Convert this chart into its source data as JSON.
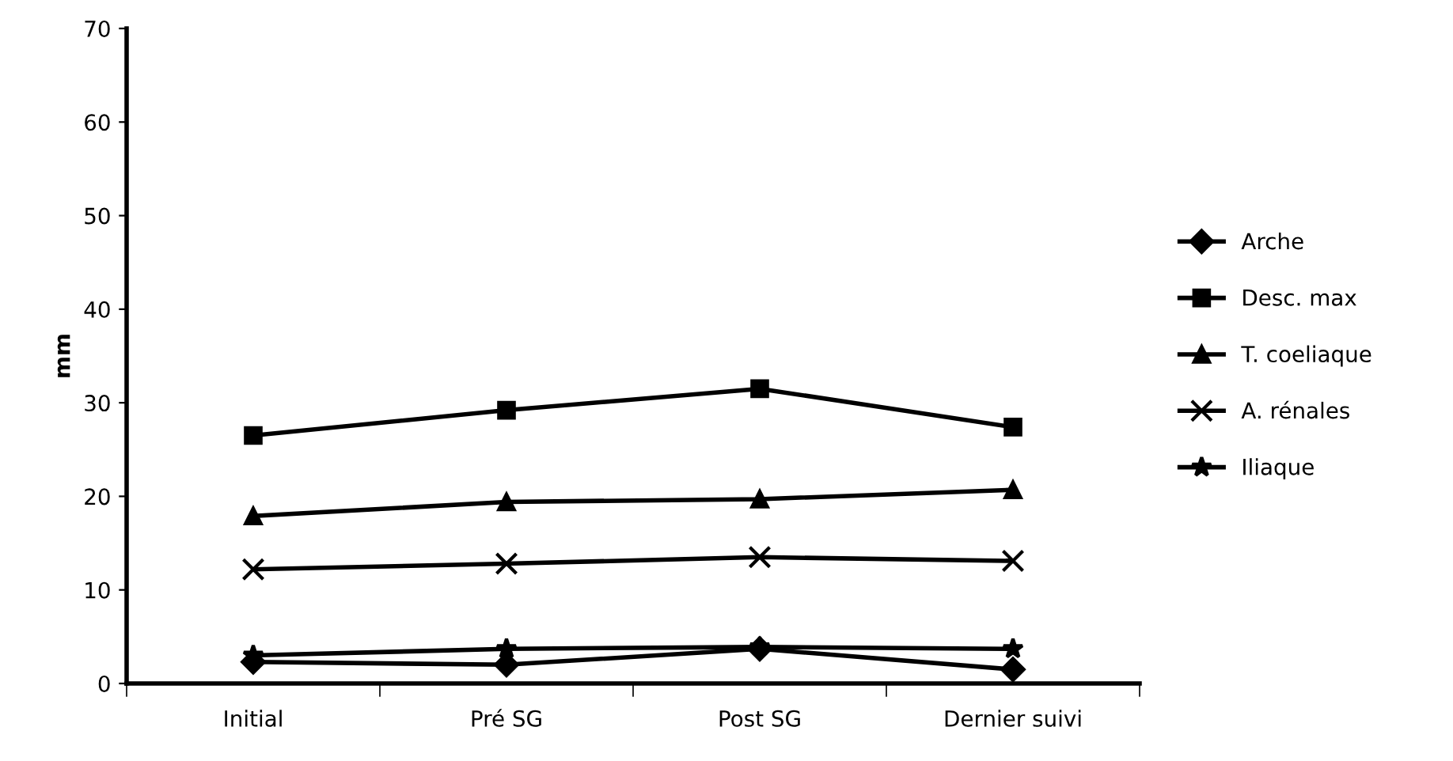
{
  "chart_data": {
    "type": "line",
    "ylabel": "mm",
    "categories": [
      "Initial",
      "Pré SG",
      "Post SG",
      "Dernier suivi"
    ],
    "series": [
      {
        "name": "Arche",
        "color": "#000000",
        "marker": "diamond",
        "values": [
          2.3,
          2.0,
          3.7,
          1.5
        ]
      },
      {
        "name": "Desc. max",
        "color": "#000000",
        "marker": "square",
        "values": [
          26.5,
          29.2,
          31.5,
          27.4
        ]
      },
      {
        "name": "T. coeliaque",
        "color": "#000000",
        "marker": "triangle",
        "values": [
          17.9,
          19.4,
          19.7,
          20.7
        ]
      },
      {
        "name": "A. rénales",
        "color": "#000000",
        "marker": "cross",
        "values": [
          12.2,
          12.8,
          13.5,
          13.1
        ]
      },
      {
        "name": "Iliaque",
        "color": "#000000",
        "marker": "star",
        "values": [
          3.0,
          3.7,
          3.9,
          3.7
        ]
      }
    ],
    "ylim": [
      0,
      70
    ],
    "yticks": [
      0,
      10,
      20,
      30,
      40,
      50,
      60,
      70
    ],
    "grid": false,
    "legend": "right",
    "line_style": "solid"
  }
}
